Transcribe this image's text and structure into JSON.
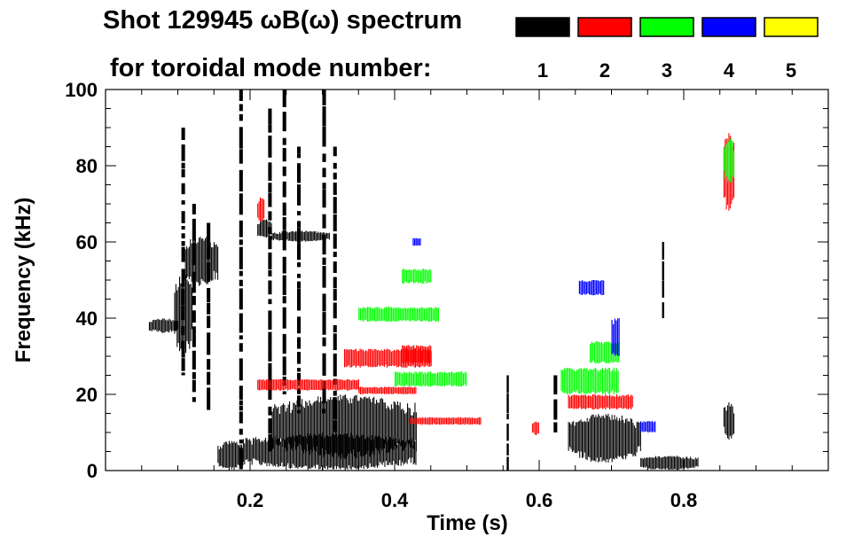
{
  "chart_data": {
    "type": "heatmap",
    "title_line1": "Shot 129945 ωB(ω) spectrum",
    "title_line2": "for toroidal mode number:",
    "xlabel": "Time (s)",
    "ylabel": "Frequency (kHz)",
    "xlim": [
      0.0,
      1.0
    ],
    "ylim": [
      0,
      100
    ],
    "xticks": [
      0.2,
      0.4,
      0.6,
      0.8
    ],
    "xtick_labels": [
      "0.2",
      "0.4",
      "0.6",
      "0.8"
    ],
    "yticks": [
      0,
      20,
      40,
      60,
      80,
      100
    ],
    "ytick_labels": [
      "0",
      "20",
      "40",
      "60",
      "80",
      "100"
    ],
    "legend_placement": "top-right",
    "legend": [
      {
        "label": "1",
        "color": "#000000"
      },
      {
        "label": "2",
        "color": "#ff0000"
      },
      {
        "label": "3",
        "color": "#00ff00"
      },
      {
        "label": "4",
        "color": "#0000ff"
      },
      {
        "label": "5",
        "color": "#ffff00"
      }
    ],
    "features": [
      {
        "mode": 1,
        "kind": "blob",
        "t": [
          0.155,
          0.19
        ],
        "f": [
          0,
          8
        ]
      },
      {
        "mode": 1,
        "kind": "blob",
        "t": [
          0.19,
          0.43
        ],
        "f": [
          0,
          10
        ]
      },
      {
        "mode": 1,
        "kind": "blob",
        "t": [
          0.23,
          0.43
        ],
        "f": [
          3,
          20
        ]
      },
      {
        "mode": 1,
        "kind": "blob",
        "t": [
          0.64,
          0.74
        ],
        "f": [
          2,
          15
        ]
      },
      {
        "mode": 1,
        "kind": "blob",
        "t": [
          0.74,
          0.82
        ],
        "f": [
          0,
          4
        ]
      },
      {
        "mode": 1,
        "kind": "blob",
        "t": [
          0.06,
          0.1
        ],
        "f": [
          36,
          40
        ]
      },
      {
        "mode": 1,
        "kind": "blob",
        "t": [
          0.095,
          0.12
        ],
        "f": [
          30,
          52
        ]
      },
      {
        "mode": 1,
        "kind": "blob",
        "t": [
          0.11,
          0.155
        ],
        "f": [
          48,
          62
        ]
      },
      {
        "mode": 1,
        "kind": "blob",
        "t": [
          0.21,
          0.23
        ],
        "f": [
          61,
          66
        ]
      },
      {
        "mode": 1,
        "kind": "blob",
        "t": [
          0.23,
          0.31
        ],
        "f": [
          60,
          63
        ]
      },
      {
        "mode": 1,
        "kind": "blob",
        "t": [
          0.855,
          0.87
        ],
        "f": [
          8,
          18
        ]
      },
      {
        "mode": 1,
        "kind": "stripe",
        "t": [
          0.105,
          0.11
        ],
        "f": [
          25,
          90
        ]
      },
      {
        "mode": 1,
        "kind": "stripe",
        "t": [
          0.12,
          0.125
        ],
        "f": [
          18,
          70
        ]
      },
      {
        "mode": 1,
        "kind": "stripe",
        "t": [
          0.14,
          0.145
        ],
        "f": [
          15,
          65
        ]
      },
      {
        "mode": 1,
        "kind": "stripe",
        "t": [
          0.185,
          0.19
        ],
        "f": [
          0,
          100
        ]
      },
      {
        "mode": 1,
        "kind": "stripe",
        "t": [
          0.225,
          0.23
        ],
        "f": [
          5,
          95
        ]
      },
      {
        "mode": 1,
        "kind": "stripe",
        "t": [
          0.245,
          0.25
        ],
        "f": [
          20,
          100
        ]
      },
      {
        "mode": 1,
        "kind": "stripe",
        "t": [
          0.265,
          0.27
        ],
        "f": [
          15,
          85
        ]
      },
      {
        "mode": 1,
        "kind": "stripe",
        "t": [
          0.3,
          0.305
        ],
        "f": [
          15,
          100
        ]
      },
      {
        "mode": 1,
        "kind": "stripe",
        "t": [
          0.315,
          0.32
        ],
        "f": [
          10,
          85
        ]
      },
      {
        "mode": 1,
        "kind": "stripe",
        "t": [
          0.555,
          0.558
        ],
        "f": [
          0,
          25
        ]
      },
      {
        "mode": 1,
        "kind": "stripe",
        "t": [
          0.62,
          0.625
        ],
        "f": [
          10,
          25
        ]
      },
      {
        "mode": 1,
        "kind": "stripe",
        "t": [
          0.77,
          0.773
        ],
        "f": [
          40,
          60
        ]
      },
      {
        "mode": 2,
        "kind": "band",
        "t": [
          0.21,
          0.35
        ],
        "f": [
          21,
          24
        ]
      },
      {
        "mode": 2,
        "kind": "band",
        "t": [
          0.35,
          0.43
        ],
        "f": [
          20,
          22
        ]
      },
      {
        "mode": 2,
        "kind": "band",
        "t": [
          0.33,
          0.45
        ],
        "f": [
          27,
          32
        ]
      },
      {
        "mode": 2,
        "kind": "band",
        "t": [
          0.41,
          0.45
        ],
        "f": [
          28,
          33
        ]
      },
      {
        "mode": 2,
        "kind": "band",
        "t": [
          0.42,
          0.52
        ],
        "f": [
          12,
          14
        ]
      },
      {
        "mode": 2,
        "kind": "band",
        "t": [
          0.64,
          0.73
        ],
        "f": [
          16,
          20
        ]
      },
      {
        "mode": 2,
        "kind": "blob",
        "t": [
          0.21,
          0.22
        ],
        "f": [
          65,
          72
        ]
      },
      {
        "mode": 2,
        "kind": "blob",
        "t": [
          0.855,
          0.87
        ],
        "f": [
          67,
          90
        ]
      },
      {
        "mode": 2,
        "kind": "blob",
        "t": [
          0.59,
          0.6
        ],
        "f": [
          9,
          13
        ]
      },
      {
        "mode": 3,
        "kind": "band",
        "t": [
          0.35,
          0.46
        ],
        "f": [
          39,
          43
        ]
      },
      {
        "mode": 3,
        "kind": "band",
        "t": [
          0.41,
          0.45
        ],
        "f": [
          49,
          53
        ]
      },
      {
        "mode": 3,
        "kind": "band",
        "t": [
          0.4,
          0.5
        ],
        "f": [
          22,
          26
        ]
      },
      {
        "mode": 3,
        "kind": "band",
        "t": [
          0.63,
          0.71
        ],
        "f": [
          20,
          27
        ]
      },
      {
        "mode": 3,
        "kind": "band",
        "t": [
          0.67,
          0.71
        ],
        "f": [
          28,
          34
        ]
      },
      {
        "mode": 3,
        "kind": "blob",
        "t": [
          0.855,
          0.87
        ],
        "f": [
          75,
          88
        ]
      },
      {
        "mode": 4,
        "kind": "band",
        "t": [
          0.655,
          0.69
        ],
        "f": [
          46,
          50
        ]
      },
      {
        "mode": 4,
        "kind": "band",
        "t": [
          0.425,
          0.435
        ],
        "f": [
          59,
          61
        ]
      },
      {
        "mode": 4,
        "kind": "band",
        "t": [
          0.7,
          0.71
        ],
        "f": [
          30,
          40
        ]
      },
      {
        "mode": 4,
        "kind": "band",
        "t": [
          0.74,
          0.76
        ],
        "f": [
          10,
          13
        ]
      }
    ]
  }
}
